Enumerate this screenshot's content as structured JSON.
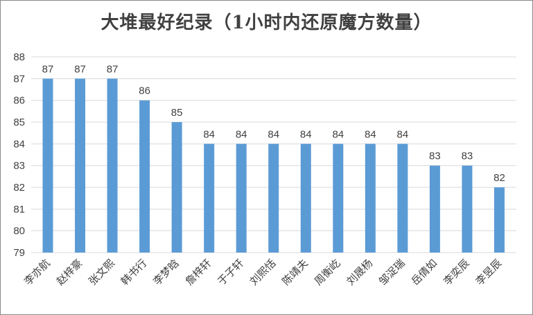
{
  "chart_data": {
    "type": "bar",
    "title": "大堆最好纪录（1小时内还原魔方数量）",
    "categories": [
      "李亦航",
      "赵梓豪",
      "张文熙",
      "韩书行",
      "李梦晗",
      "詹梓轩",
      "于子轩",
      "刘熙恬",
      "陈靖夫",
      "周衡屹",
      "刘晟杨",
      "邹浞瑞",
      "岳倩如",
      "李奕辰",
      "李昱辰"
    ],
    "values": [
      87,
      87,
      87,
      86,
      85,
      84,
      84,
      84,
      84,
      84,
      84,
      84,
      83,
      83,
      82
    ],
    "ylim": [
      79,
      88
    ],
    "yticks": [
      79,
      80,
      81,
      82,
      83,
      84,
      85,
      86,
      87,
      88
    ],
    "grid": true,
    "legend": "none",
    "bar_color": "#5b9bd5",
    "grid_color": "#d9d9d9"
  }
}
